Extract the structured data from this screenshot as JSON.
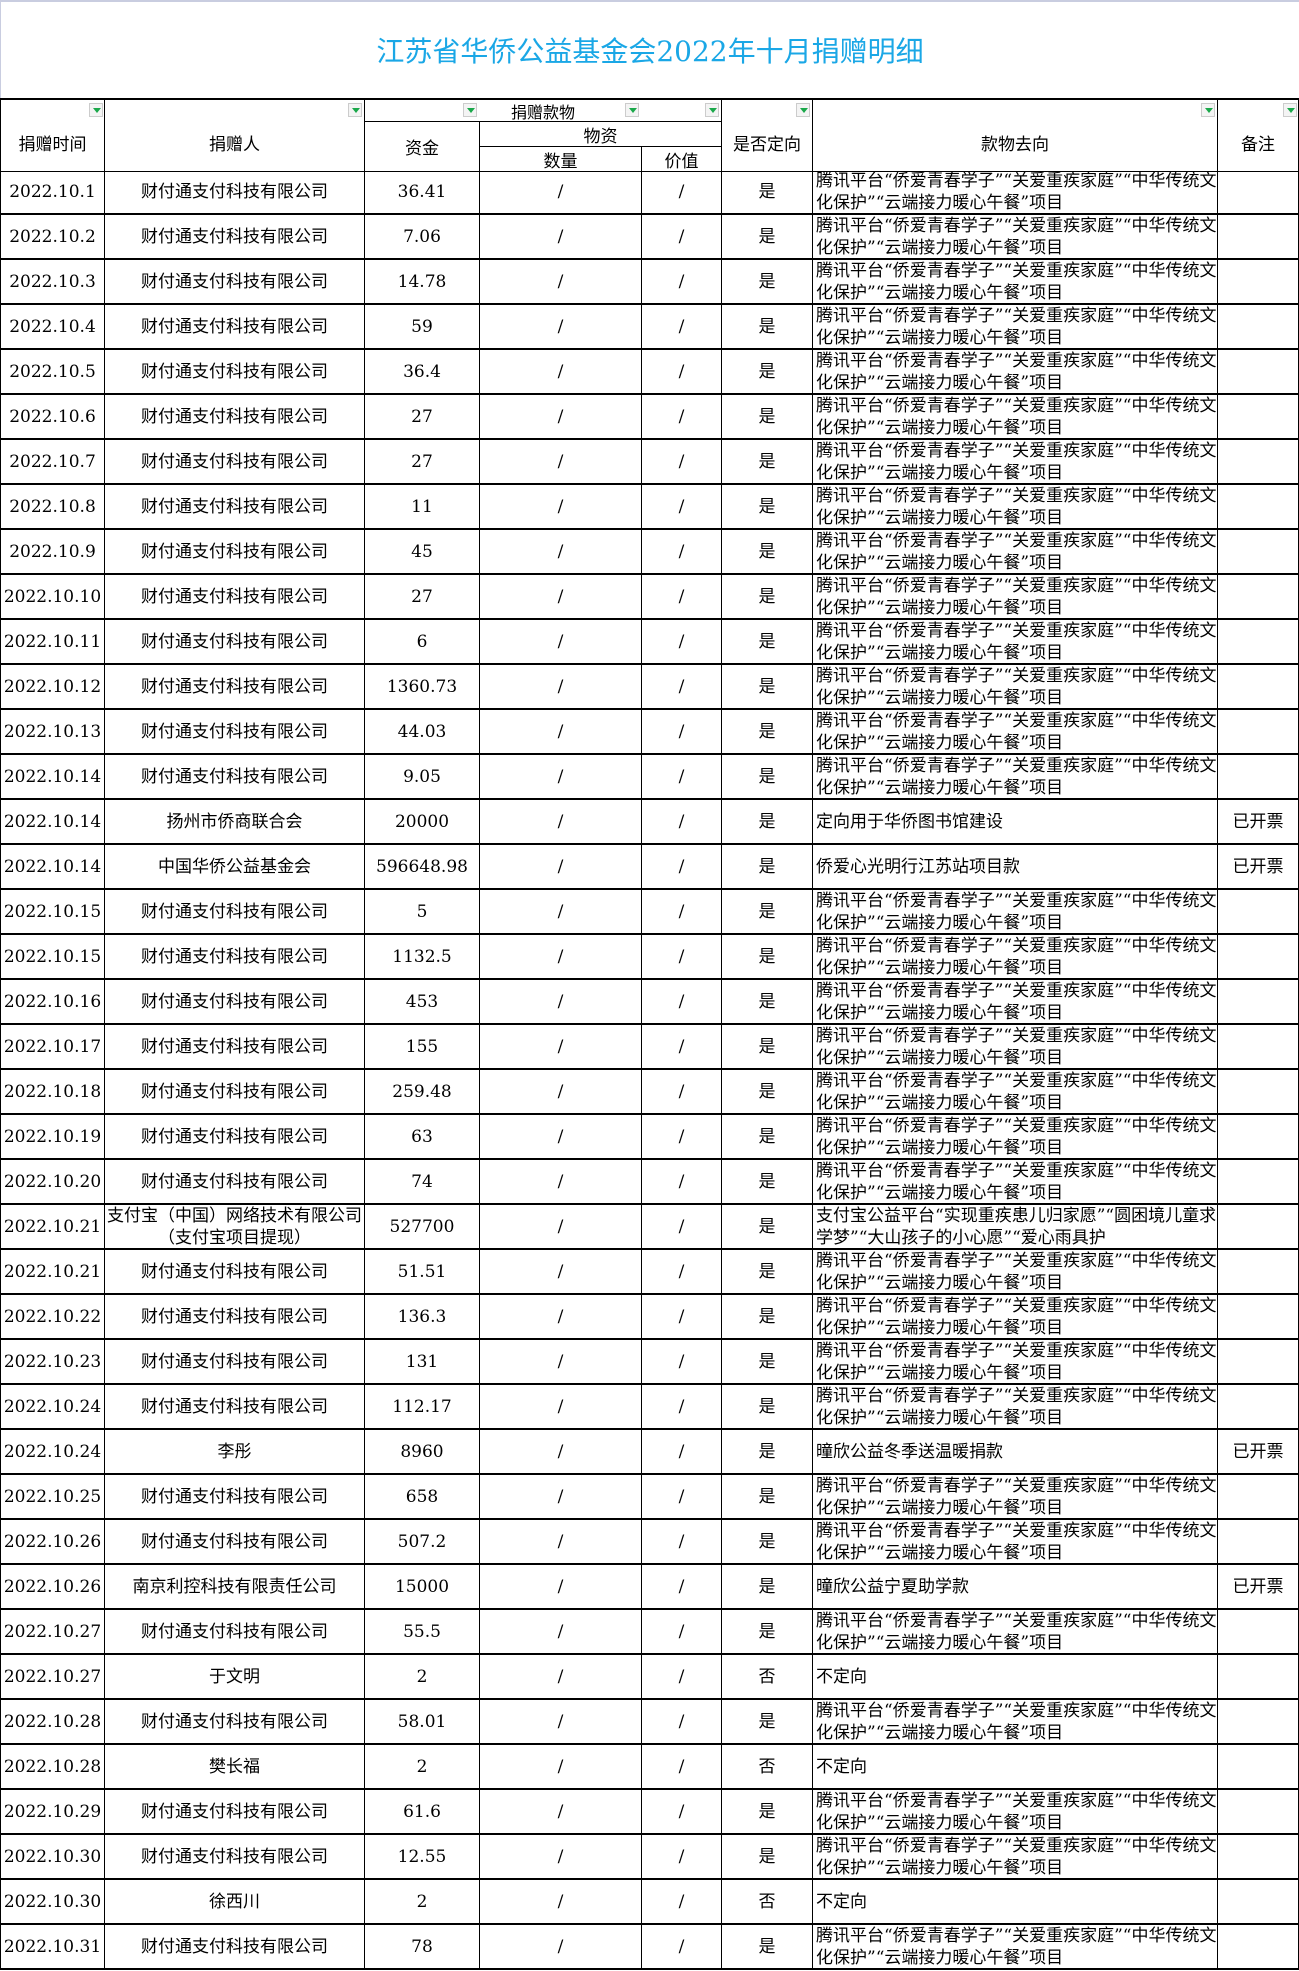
{
  "title": "江苏省华侨公益基金会2022年十月捐赠明细",
  "headers": {
    "date": "捐赠时间",
    "donor": "捐赠人",
    "donation": "捐赠款物",
    "funds": "资金",
    "goods": "物资",
    "quantity": "数量",
    "value": "价值",
    "directed": "是否定向",
    "destination": "款物去向",
    "remark": "备注"
  },
  "filter_icon": "dropdown-filter-icon",
  "rows": [
    [
      "2022.10.1",
      "财付通支付科技有限公司",
      "36.41",
      "/",
      "/",
      "是",
      "腾讯平台“侨爱青春学子”“关爱重疾家庭”“中华传统文化保护”“云端接力暖心午餐”项目",
      ""
    ],
    [
      "2022.10.2",
      "财付通支付科技有限公司",
      "7.06",
      "/",
      "/",
      "是",
      "腾讯平台“侨爱青春学子”“关爱重疾家庭”“中华传统文化保护”“云端接力暖心午餐”项目",
      ""
    ],
    [
      "2022.10.3",
      "财付通支付科技有限公司",
      "14.78",
      "/",
      "/",
      "是",
      "腾讯平台“侨爱青春学子”“关爱重疾家庭”“中华传统文化保护”“云端接力暖心午餐”项目",
      ""
    ],
    [
      "2022.10.4",
      "财付通支付科技有限公司",
      "59",
      "/",
      "/",
      "是",
      "腾讯平台“侨爱青春学子”“关爱重疾家庭”“中华传统文化保护”“云端接力暖心午餐”项目",
      ""
    ],
    [
      "2022.10.5",
      "财付通支付科技有限公司",
      "36.4",
      "/",
      "/",
      "是",
      "腾讯平台“侨爱青春学子”“关爱重疾家庭”“中华传统文化保护”“云端接力暖心午餐”项目",
      ""
    ],
    [
      "2022.10.6",
      "财付通支付科技有限公司",
      "27",
      "/",
      "/",
      "是",
      "腾讯平台“侨爱青春学子”“关爱重疾家庭”“中华传统文化保护”“云端接力暖心午餐”项目",
      ""
    ],
    [
      "2022.10.7",
      "财付通支付科技有限公司",
      "27",
      "/",
      "/",
      "是",
      "腾讯平台“侨爱青春学子”“关爱重疾家庭”“中华传统文化保护”“云端接力暖心午餐”项目",
      ""
    ],
    [
      "2022.10.8",
      "财付通支付科技有限公司",
      "11",
      "/",
      "/",
      "是",
      "腾讯平台“侨爱青春学子”“关爱重疾家庭”“中华传统文化保护”“云端接力暖心午餐”项目",
      ""
    ],
    [
      "2022.10.9",
      "财付通支付科技有限公司",
      "45",
      "/",
      "/",
      "是",
      "腾讯平台“侨爱青春学子”“关爱重疾家庭”“中华传统文化保护”“云端接力暖心午餐”项目",
      ""
    ],
    [
      "2022.10.10",
      "财付通支付科技有限公司",
      "27",
      "/",
      "/",
      "是",
      "腾讯平台“侨爱青春学子”“关爱重疾家庭”“中华传统文化保护”“云端接力暖心午餐”项目",
      ""
    ],
    [
      "2022.10.11",
      "财付通支付科技有限公司",
      "6",
      "/",
      "/",
      "是",
      "腾讯平台“侨爱青春学子”“关爱重疾家庭”“中华传统文化保护”“云端接力暖心午餐”项目",
      ""
    ],
    [
      "2022.10.12",
      "财付通支付科技有限公司",
      "1360.73",
      "/",
      "/",
      "是",
      "腾讯平台“侨爱青春学子”“关爱重疾家庭”“中华传统文化保护”“云端接力暖心午餐”项目",
      ""
    ],
    [
      "2022.10.13",
      "财付通支付科技有限公司",
      "44.03",
      "/",
      "/",
      "是",
      "腾讯平台“侨爱青春学子”“关爱重疾家庭”“中华传统文化保护”“云端接力暖心午餐”项目",
      ""
    ],
    [
      "2022.10.14",
      "财付通支付科技有限公司",
      "9.05",
      "/",
      "/",
      "是",
      "腾讯平台“侨爱青春学子”“关爱重疾家庭”“中华传统文化保护”“云端接力暖心午餐”项目",
      ""
    ],
    [
      "2022.10.14",
      "扬州市侨商联合会",
      "20000",
      "/",
      "/",
      "是",
      "定向用于华侨图书馆建设",
      "已开票"
    ],
    [
      "2022.10.14",
      "中国华侨公益基金会",
      "596648.98",
      "/",
      "/",
      "是",
      "侨爱心光明行江苏站项目款",
      "已开票"
    ],
    [
      "2022.10.15",
      "财付通支付科技有限公司",
      "5",
      "/",
      "/",
      "是",
      "腾讯平台“侨爱青春学子”“关爱重疾家庭”“中华传统文化保护”“云端接力暖心午餐”项目",
      ""
    ],
    [
      "2022.10.15",
      "财付通支付科技有限公司",
      "1132.5",
      "/",
      "/",
      "是",
      "腾讯平台“侨爱青春学子”“关爱重疾家庭”“中华传统文化保护”“云端接力暖心午餐”项目",
      ""
    ],
    [
      "2022.10.16",
      "财付通支付科技有限公司",
      "453",
      "/",
      "/",
      "是",
      "腾讯平台“侨爱青春学子”“关爱重疾家庭”“中华传统文化保护”“云端接力暖心午餐”项目",
      ""
    ],
    [
      "2022.10.17",
      "财付通支付科技有限公司",
      "155",
      "/",
      "/",
      "是",
      "腾讯平台“侨爱青春学子”“关爱重疾家庭”“中华传统文化保护”“云端接力暖心午餐”项目",
      ""
    ],
    [
      "2022.10.18",
      "财付通支付科技有限公司",
      "259.48",
      "/",
      "/",
      "是",
      "腾讯平台“侨爱青春学子”“关爱重疾家庭”“中华传统文化保护”“云端接力暖心午餐”项目",
      ""
    ],
    [
      "2022.10.19",
      "财付通支付科技有限公司",
      "63",
      "/",
      "/",
      "是",
      "腾讯平台“侨爱青春学子”“关爱重疾家庭”“中华传统文化保护”“云端接力暖心午餐”项目",
      ""
    ],
    [
      "2022.10.20",
      "财付通支付科技有限公司",
      "74",
      "/",
      "/",
      "是",
      "腾讯平台“侨爱青春学子”“关爱重疾家庭”“中华传统文化保护”“云端接力暖心午餐”项目",
      ""
    ],
    [
      "2022.10.21",
      "支付宝（中国）网络技术有限公司（支付宝项目提现）",
      "527700",
      "/",
      "/",
      "是",
      "支付宝公益平台“实现重疾患儿归家愿”“圆困境儿童求学梦”“大山孩子的小心愿”“爱心雨具护",
      ""
    ],
    [
      "2022.10.21",
      "财付通支付科技有限公司",
      "51.51",
      "/",
      "/",
      "是",
      "腾讯平台“侨爱青春学子”“关爱重疾家庭”“中华传统文化保护”“云端接力暖心午餐”项目",
      ""
    ],
    [
      "2022.10.22",
      "财付通支付科技有限公司",
      "136.3",
      "/",
      "/",
      "是",
      "腾讯平台“侨爱青春学子”“关爱重疾家庭”“中华传统文化保护”“云端接力暖心午餐”项目",
      ""
    ],
    [
      "2022.10.23",
      "财付通支付科技有限公司",
      "131",
      "/",
      "/",
      "是",
      "腾讯平台“侨爱青春学子”“关爱重疾家庭”“中华传统文化保护”“云端接力暖心午餐”项目",
      ""
    ],
    [
      "2022.10.24",
      "财付通支付科技有限公司",
      "112.17",
      "/",
      "/",
      "是",
      "腾讯平台“侨爱青春学子”“关爱重疾家庭”“中华传统文化保护”“云端接力暖心午餐”项目",
      ""
    ],
    [
      "2022.10.24",
      "李彤",
      "8960",
      "/",
      "/",
      "是",
      "曈欣公益冬季送温暖捐款",
      "已开票"
    ],
    [
      "2022.10.25",
      "财付通支付科技有限公司",
      "658",
      "/",
      "/",
      "是",
      "腾讯平台“侨爱青春学子”“关爱重疾家庭”“中华传统文化保护”“云端接力暖心午餐”项目",
      ""
    ],
    [
      "2022.10.26",
      "财付通支付科技有限公司",
      "507.2",
      "/",
      "/",
      "是",
      "腾讯平台“侨爱青春学子”“关爱重疾家庭”“中华传统文化保护”“云端接力暖心午餐”项目",
      ""
    ],
    [
      "2022.10.26",
      "南京利控科技有限责任公司",
      "15000",
      "/",
      "/",
      "是",
      "曈欣公益宁夏助学款",
      "已开票"
    ],
    [
      "2022.10.27",
      "财付通支付科技有限公司",
      "55.5",
      "/",
      "/",
      "是",
      "腾讯平台“侨爱青春学子”“关爱重疾家庭”“中华传统文化保护”“云端接力暖心午餐”项目",
      ""
    ],
    [
      "2022.10.27",
      "于文明",
      "2",
      "/",
      "/",
      "否",
      "不定向",
      ""
    ],
    [
      "2022.10.28",
      "财付通支付科技有限公司",
      "58.01",
      "/",
      "/",
      "是",
      "腾讯平台“侨爱青春学子”“关爱重疾家庭”“中华传统文化保护”“云端接力暖心午餐”项目",
      ""
    ],
    [
      "2022.10.28",
      "樊长福",
      "2",
      "/",
      "/",
      "否",
      "不定向",
      ""
    ],
    [
      "2022.10.29",
      "财付通支付科技有限公司",
      "61.6",
      "/",
      "/",
      "是",
      "腾讯平台“侨爱青春学子”“关爱重疾家庭”“中华传统文化保护”“云端接力暖心午餐”项目",
      ""
    ],
    [
      "2022.10.30",
      "财付通支付科技有限公司",
      "12.55",
      "/",
      "/",
      "是",
      "腾讯平台“侨爱青春学子”“关爱重疾家庭”“中华传统文化保护”“云端接力暖心午餐”项目",
      ""
    ],
    [
      "2022.10.30",
      "徐西川",
      "2",
      "/",
      "/",
      "否",
      "不定向",
      ""
    ],
    [
      "2022.10.31",
      "财付通支付科技有限公司",
      "78",
      "/",
      "/",
      "是",
      "腾讯平台“侨爱青春学子”“关爱重疾家庭”“中华传统文化保护”“云端接力暖心午餐”项目",
      ""
    ]
  ]
}
